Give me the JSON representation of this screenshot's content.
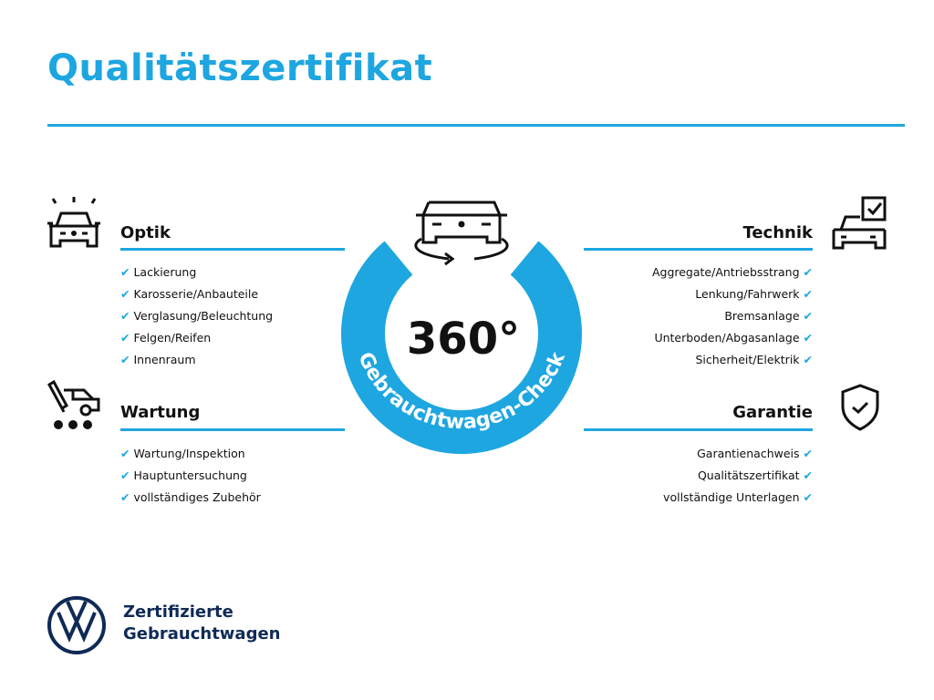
{
  "title": "Qualitätszertifikat",
  "center": {
    "big": "360°",
    "arc_text": "Gebrauchtwagen-Check"
  },
  "sections": {
    "optik": {
      "heading": "Optik",
      "items": [
        "Lackierung",
        "Karosserie/Anbauteile",
        "Verglasung/Beleuchtung",
        "Felgen/Reifen",
        "Innenraum"
      ]
    },
    "wartung": {
      "heading": "Wartung",
      "items": [
        "Wartung/Inspektion",
        "Hauptuntersuchung",
        "vollständiges Zubehör"
      ]
    },
    "technik": {
      "heading": "Technik",
      "items": [
        "Aggregate/Antriebsstrang",
        "Lenkung/Fahrwerk",
        "Bremsanlage",
        "Unterboden/Abgasanlage",
        "Sicherheit/Elektrik"
      ]
    },
    "garantie": {
      "heading": "Garantie",
      "items": [
        "Garantienachweis",
        "Qualitätszertifikat",
        "vollständige Unterlagen"
      ]
    }
  },
  "check_glyph": "✔",
  "brand": {
    "line1": "Zertifizierte",
    "line2": "Gebrauchtwagen",
    "logo": "VW"
  },
  "colors": {
    "accent": "#1ea6e0",
    "brand": "#0f2a56"
  }
}
